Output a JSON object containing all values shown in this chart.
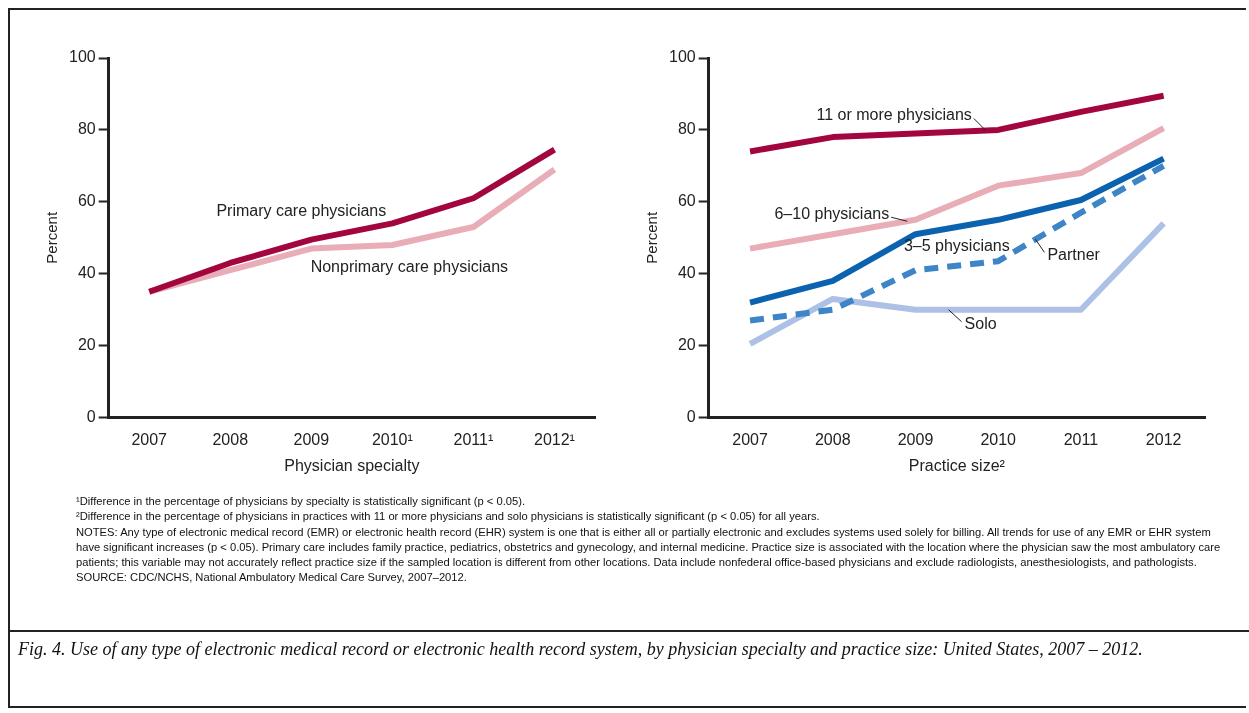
{
  "chart_data": [
    {
      "type": "line",
      "xlabel": "Physician specialty",
      "ylabel": "Percent",
      "categories": [
        "2007",
        "2008",
        "2009",
        "2010¹",
        "2011¹",
        "2012¹"
      ],
      "series": [
        {
          "name": "Primary care physicians",
          "color": "#a3063f",
          "values": [
            35,
            43,
            49.5,
            54,
            61,
            74.5
          ]
        },
        {
          "name": "Nonprimary care physicians",
          "color": "#e8adb6",
          "values": [
            35,
            41,
            47,
            48,
            53,
            69
          ]
        }
      ],
      "ylim": [
        0,
        100
      ],
      "yticks": [
        0,
        20,
        40,
        60,
        80,
        100
      ],
      "grid": false,
      "legend": false,
      "marker": "none",
      "line_style": "solid"
    },
    {
      "type": "line",
      "xlabel": "Practice size²",
      "ylabel": "Percent",
      "categories": [
        "2007",
        "2008",
        "2009",
        "2010",
        "2011",
        "2012"
      ],
      "series": [
        {
          "name": "11 or more physicians",
          "color": "#a3063f",
          "values": [
            74,
            78,
            79,
            80,
            85,
            89.5
          ]
        },
        {
          "name": "6–10 physicians",
          "color": "#e8adb6",
          "values": [
            47,
            51,
            55,
            64.5,
            68,
            80.5
          ]
        },
        {
          "name": "3–5 physicians",
          "color": "#0b63b0",
          "values": [
            32,
            38,
            51,
            55,
            60.5,
            72
          ]
        },
        {
          "name": "Partner",
          "color": "#3d85c6",
          "values": [
            27,
            30,
            41,
            43.5,
            57,
            70
          ],
          "line_style": "dashed"
        },
        {
          "name": "Solo",
          "color": "#adc0e6",
          "values": [
            20.5,
            33,
            30,
            30,
            30,
            54
          ]
        }
      ],
      "ylim": [
        0,
        100
      ],
      "yticks": [
        0,
        20,
        40,
        60,
        80,
        100
      ],
      "grid": false,
      "legend": false,
      "marker": "none",
      "line_style": "solid",
      "annotations": [
        "¹Difference in the percentage of physicians by specialty is statistically significant (p < 0.05).",
        "²Difference in the percentage of physicians in practices with 11 or more physicians and solo physicians is statistically significant (p < 0.05) for all years.",
        "NOTES: Any type of electronic medical record (EMR) or electronic health record (EHR) system is one that is either all or partially electronic and excludes systems used solely for billing. All trends for use of any EMR or EHR system have significant increases (p < 0.05). Primary care includes family practice, pediatrics, obstetrics and gynecology, and internal medicine. Practice size is associated with the location where the physician saw the most ambulatory care patients; this variable may not accurately reflect practice size if the sampled location is different from other locations. Data include nonfederal office-based physicians and exclude radiologists, anesthesiologists, and pathologists.",
        "SOURCE: CDC/NCHS, National Ambulatory Medical Care Survey, 2007–2012.",
        "Fig. 4. Use of any type of electronic medical record or electronic health record system, by physician specialty and practice size: United States, 2007 – 2012."
      ]
    }
  ]
}
